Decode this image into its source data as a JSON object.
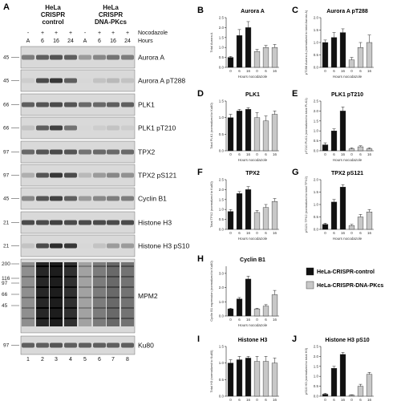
{
  "blot": {
    "panel_label": "A",
    "group1": [
      "HeLa",
      "CRISPR",
      "control"
    ],
    "group2": [
      "HeLa",
      "CRISPR",
      "DNA-PKcs"
    ],
    "nocodazole_label": "Nocodazole",
    "hours_label": "Hours",
    "nocodazole_signs": [
      "-",
      "+",
      "+",
      "+",
      "-",
      "+",
      "+",
      "+"
    ],
    "hours": [
      "A",
      "6",
      "16",
      "24",
      "A",
      "6",
      "16",
      "24"
    ],
    "lane_numbers": [
      "1",
      "2",
      "3",
      "4",
      "5",
      "6",
      "7",
      "8"
    ],
    "rows": [
      {
        "label": "Aurora A",
        "mw": "45",
        "intensity": [
          0.45,
          0.6,
          0.65,
          0.6,
          0.3,
          0.4,
          0.5,
          0.45
        ]
      },
      {
        "label": "Aurora A pT288",
        "mw": "45",
        "intensity": [
          0.05,
          0.7,
          0.8,
          0.6,
          0.0,
          0.1,
          0.15,
          0.1
        ]
      },
      {
        "label": "PLK1",
        "mw": "66",
        "intensity": [
          0.6,
          0.65,
          0.7,
          0.65,
          0.55,
          0.55,
          0.6,
          0.6
        ]
      },
      {
        "label": "PLK1 pT210",
        "mw": "66",
        "intensity": [
          0.1,
          0.6,
          0.75,
          0.5,
          0.0,
          0.05,
          0.1,
          0.05
        ]
      },
      {
        "label": "TPX2",
        "mw": "97",
        "intensity": [
          0.55,
          0.65,
          0.7,
          0.65,
          0.5,
          0.55,
          0.55,
          0.55
        ]
      },
      {
        "label": "TPX2 pS121",
        "mw": "97",
        "intensity": [
          0.2,
          0.65,
          0.8,
          0.7,
          0.15,
          0.3,
          0.4,
          0.35
        ]
      },
      {
        "label": "Cyclin B1",
        "mw": "45",
        "intensity": [
          0.4,
          0.65,
          0.75,
          0.6,
          0.3,
          0.4,
          0.45,
          0.45
        ]
      },
      {
        "label": "Histone H3",
        "mw": "21",
        "intensity": [
          0.7,
          0.7,
          0.75,
          0.7,
          0.7,
          0.7,
          0.7,
          0.7
        ]
      },
      {
        "label": "Histone H3 pS10",
        "mw": "21",
        "intensity": [
          0.1,
          0.7,
          0.85,
          0.8,
          0.0,
          0.1,
          0.3,
          0.3
        ]
      },
      {
        "label": "MPM2",
        "mw_list": [
          "200",
          "116",
          "97",
          "66",
          "45"
        ],
        "intensity": [
          0.3,
          0.85,
          0.9,
          0.8,
          0.2,
          0.4,
          0.5,
          0.45
        ]
      },
      {
        "label": "Ku80",
        "mw": "97",
        "intensity": [
          0.6,
          0.6,
          0.65,
          0.6,
          0.6,
          0.6,
          0.6,
          0.6
        ]
      }
    ]
  },
  "legend": {
    "items": [
      {
        "label": "HeLa-CRISPR-control",
        "color": "#111111"
      },
      {
        "label": "HeLa-CRISPR-DNA-PKcs",
        "color": "#c8c8c8"
      }
    ]
  },
  "chart_data": [
    {
      "panel": "B",
      "type": "bar",
      "title": "Aurora A",
      "ylabel": "Total Aurora A",
      "xlabel": "Hours nocodazole",
      "categories": [
        "0",
        "6",
        "16",
        "0",
        "6",
        "16"
      ],
      "values": [
        0.5,
        1.6,
        2.0,
        0.8,
        1.0,
        1.0
      ],
      "errors": [
        0.05,
        0.3,
        0.3,
        0.1,
        0.1,
        0.15
      ],
      "ylim": [
        0,
        2.5
      ]
    },
    {
      "panel": "C",
      "type": "bar",
      "title": "Aurora A pT288",
      "ylabel": "pT288 Aurora A (normalized to total Aurora A)",
      "xlabel": "Hours nocodazole",
      "categories": [
        "0",
        "6",
        "16",
        "0",
        "6",
        "16"
      ],
      "values": [
        1.0,
        1.2,
        1.4,
        0.3,
        0.8,
        1.0
      ],
      "errors": [
        0.1,
        0.2,
        0.15,
        0.1,
        0.2,
        0.3
      ],
      "ylim": [
        0,
        2.0
      ]
    },
    {
      "panel": "D",
      "type": "bar",
      "title": "PLK1",
      "ylabel": "Total PLK1 (normalized to Ku80)",
      "xlabel": "Hours nocodazole",
      "categories": [
        "0",
        "6",
        "16",
        "0",
        "6",
        "16"
      ],
      "values": [
        1.0,
        1.2,
        1.25,
        1.0,
        0.9,
        1.1
      ],
      "errors": [
        0.1,
        0.05,
        0.05,
        0.15,
        0.15,
        0.1
      ],
      "ylim": [
        0,
        1.5
      ]
    },
    {
      "panel": "E",
      "type": "bar",
      "title": "PLK1 pT210",
      "ylabel": "pT210 PLK1 (normalized to total PLK1)",
      "xlabel": "Hours nocodazole",
      "categories": [
        "0",
        "6",
        "16",
        "0",
        "6",
        "16"
      ],
      "values": [
        0.3,
        1.0,
        2.0,
        0.1,
        0.2,
        0.1
      ],
      "errors": [
        0.1,
        0.1,
        0.2,
        0.05,
        0.05,
        0.05
      ],
      "ylim": [
        0,
        2.5
      ]
    },
    {
      "panel": "F",
      "type": "bar",
      "title": "TPX2",
      "ylabel": "Total TPX2 (normalized to Ku80)",
      "xlabel": "Hours nocodazole",
      "categories": [
        "0",
        "6",
        "16",
        "0",
        "6",
        "16"
      ],
      "values": [
        0.9,
        1.8,
        2.0,
        0.85,
        1.1,
        1.4
      ],
      "errors": [
        0.1,
        0.1,
        0.15,
        0.1,
        0.15,
        0.15
      ],
      "ylim": [
        0,
        2.5
      ]
    },
    {
      "panel": "G",
      "type": "bar",
      "title": "TPX2 pS121",
      "ylabel": "pS121 TPX2 (normalized to total TPX2)",
      "xlabel": "Hours nocodazole",
      "categories": [
        "0",
        "6",
        "16",
        "0",
        "6",
        "16"
      ],
      "values": [
        0.2,
        1.1,
        1.7,
        0.15,
        0.5,
        0.7
      ],
      "errors": [
        0.05,
        0.1,
        0.1,
        0.05,
        0.1,
        0.1
      ],
      "ylim": [
        0,
        2.0
      ]
    },
    {
      "panel": "H",
      "type": "bar",
      "title": "Cyclin B1",
      "ylabel": "Cyclin B1 expression (normalized to Ku80)",
      "xlabel": "Hours nocodazole",
      "categories": [
        "0",
        "6",
        "16",
        "0",
        "6",
        "16"
      ],
      "values": [
        0.5,
        1.2,
        2.6,
        0.5,
        0.7,
        1.5
      ],
      "errors": [
        0.05,
        0.1,
        0.2,
        0.05,
        0.1,
        0.3
      ],
      "ylim": [
        0,
        3.5
      ]
    },
    {
      "panel": "I",
      "type": "bar",
      "title": "Histone H3",
      "ylabel": "Total H3 (normalized to Ku80)",
      "xlabel": "Hours nocodazole",
      "categories": [
        "0",
        "6",
        "16",
        "0",
        "6",
        "16"
      ],
      "values": [
        1.0,
        1.1,
        1.15,
        1.05,
        1.05,
        1.0
      ],
      "errors": [
        0.1,
        0.1,
        0.05,
        0.15,
        0.15,
        0.15
      ],
      "ylim": [
        0,
        1.5
      ]
    },
    {
      "panel": "J",
      "type": "bar",
      "title": "Histone H3 pS10",
      "ylabel": "pS10 H3 (normalized to total H3)",
      "xlabel": "Hours nocodazole",
      "categories": [
        "0",
        "6",
        "16",
        "0",
        "6",
        "16"
      ],
      "values": [
        0.1,
        1.4,
        2.1,
        0.05,
        0.5,
        1.1
      ],
      "errors": [
        0.05,
        0.1,
        0.1,
        0.02,
        0.1,
        0.1
      ],
      "ylim": [
        0,
        2.5
      ]
    }
  ]
}
